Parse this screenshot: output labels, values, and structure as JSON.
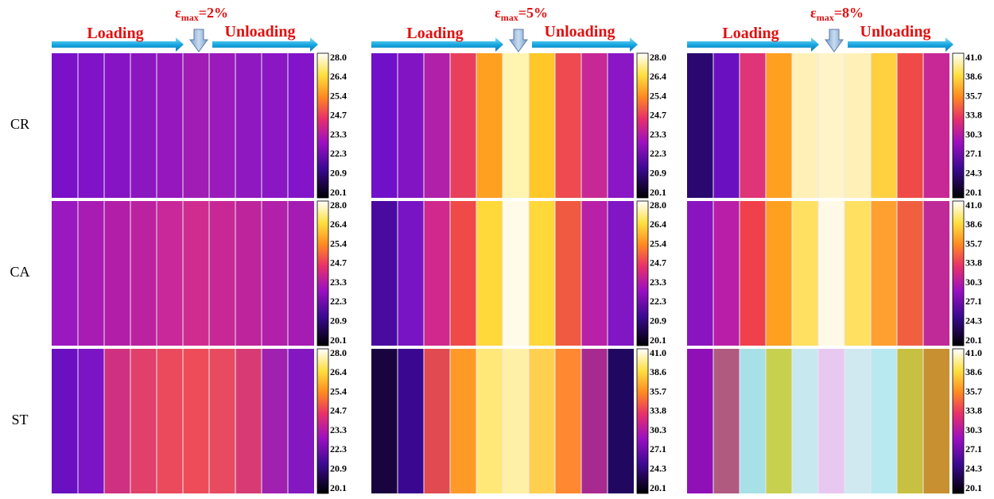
{
  "columns": [
    {
      "symbol": "ε",
      "sub": "max",
      "value": "=2%",
      "loading": "Loading",
      "unloading": "Unloading"
    },
    {
      "symbol": "ε",
      "sub": "max",
      "value": "=5%",
      "loading": "Loading",
      "unloading": "Unloading"
    },
    {
      "symbol": "ε",
      "sub": "max",
      "value": "=8%",
      "loading": "Loading",
      "unloading": "Unloading"
    }
  ],
  "rows": [
    {
      "label": "CR",
      "panels": [
        {
          "scale": [
            "28.0",
            "26.4",
            "25.4",
            "24.7",
            "23.3",
            "22.3",
            "20.9",
            "20.1"
          ],
          "strips": [
            "#7a10c8",
            "#8012c8",
            "#8614c4",
            "#8c16c0",
            "#9618bc",
            "#a01cb4",
            "#9a1abb",
            "#9018c0",
            "#8a16c4",
            "#8414c8"
          ]
        },
        {
          "scale": [
            "28.0",
            "26.4",
            "25.4",
            "24.7",
            "23.3",
            "22.3",
            "20.9",
            "20.1"
          ],
          "strips": [
            "#7010c8",
            "#8214c4",
            "#b020a8",
            "#e8405c",
            "#ffa020",
            "#fff4b0",
            "#ffc828",
            "#ee4a50",
            "#c82896",
            "#8a16c4"
          ]
        },
        {
          "scale": [
            "41.0",
            "38.6",
            "35.7",
            "33.8",
            "30.3",
            "27.1",
            "24.3",
            "20.1"
          ],
          "strips": [
            "#2a0870",
            "#6a10c0",
            "#e03478",
            "#ffa020",
            "#fff0b8",
            "#fff4c8",
            "#fff0b8",
            "#ffd040",
            "#f04a48",
            "#c82896"
          ]
        }
      ]
    },
    {
      "label": "CA",
      "panels": [
        {
          "scale": [
            "28.0",
            "26.4",
            "25.4",
            "24.7",
            "23.3",
            "22.3",
            "20.9",
            "20.1"
          ],
          "strips": [
            "#9a18c0",
            "#a81cb4",
            "#b21ea8",
            "#bb22a0",
            "#c8289a",
            "#d02c90",
            "#c82896",
            "#be249c",
            "#b020a8",
            "#a41cb2"
          ]
        },
        {
          "scale": [
            "28.0",
            "26.4",
            "25.4",
            "24.7",
            "23.3",
            "22.3",
            "20.9",
            "20.1"
          ],
          "strips": [
            "#4a0aa0",
            "#7814c4",
            "#d0288c",
            "#f04a48",
            "#ffd83a",
            "#fffbe8",
            "#ffd83a",
            "#f05a40",
            "#b820a8",
            "#8016c4"
          ]
        },
        {
          "scale": [
            "41.0",
            "38.6",
            "35.7",
            "33.8",
            "30.3",
            "27.1",
            "24.3",
            "20.1"
          ],
          "strips": [
            "#8a14c0",
            "#b81ea8",
            "#f0404c",
            "#ffa020",
            "#ffe060",
            "#fffae8",
            "#ffe060",
            "#ffa030",
            "#f06040",
            "#c02a98"
          ]
        }
      ]
    },
    {
      "label": "ST",
      "panels": [
        {
          "scale": [
            "28.0",
            "26.4",
            "25.4",
            "24.7",
            "23.3",
            "22.3",
            "20.9",
            "20.1"
          ],
          "strips": [
            "#6a10c0",
            "#7a14c4",
            "#d03080",
            "#e0406a",
            "#ea4a5c",
            "#ee4c58",
            "#e84a60",
            "#d83a74",
            "#a020b0",
            "#8418c0"
          ]
        },
        {
          "scale": [
            "41.0",
            "38.6",
            "35.7",
            "33.8",
            "30.3",
            "27.1",
            "24.3",
            "20.1"
          ],
          "strips": [
            "#1a0440",
            "#3a0890",
            "#e04a50",
            "#ff9a28",
            "#ffe878",
            "#fff0a8",
            "#ffd050",
            "#ff8830",
            "#a82a90",
            "#200860"
          ]
        },
        {
          "scale": [
            "41.0",
            "38.6",
            "35.7",
            "33.8",
            "30.3",
            "27.1",
            "24.3",
            "20.1"
          ],
          "strips": [
            "#9010b8",
            "#b05a80",
            "#a8e0e8",
            "#c8d050",
            "#c8e8f0",
            "#e8c8f0",
            "#d0e8f0",
            "#b8e8f0",
            "#c8c040",
            "#c89030"
          ]
        }
      ]
    }
  ]
}
